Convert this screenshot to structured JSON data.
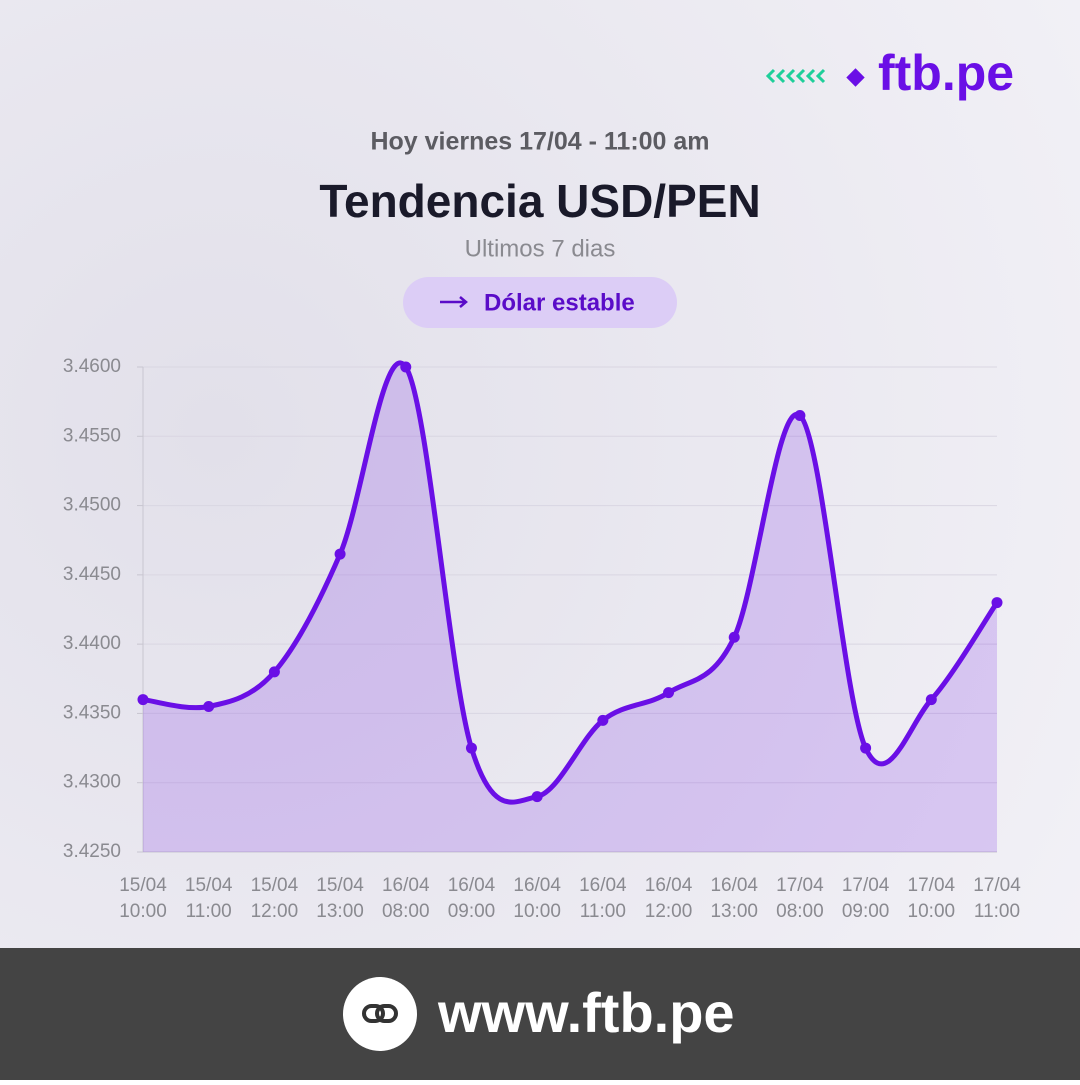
{
  "brand": "ftb.pe",
  "date_line": "Hoy viernes 17/04 - 11:00 am",
  "badge": "Dólar estable",
  "footer_url": "www.ftb.pe",
  "chart_data": {
    "type": "line",
    "title": "Tendencia USD/PEN",
    "subtitle": "Ultimos 7 dias",
    "categories": [
      "15/04 10:00",
      "15/04 11:00",
      "15/04 12:00",
      "15/04 13:00",
      "16/04 08:00",
      "16/04 09:00",
      "16/04 10:00",
      "16/04 11:00",
      "16/04 12:00",
      "16/04 13:00",
      "17/04 08:00",
      "17/04 09:00",
      "17/04 10:00",
      "17/04 11:00"
    ],
    "values": [
      3.436,
      3.4355,
      3.438,
      3.4465,
      3.46,
      3.4325,
      3.429,
      3.4345,
      3.4365,
      3.4405,
      3.4565,
      3.4325,
      3.436,
      3.443
    ],
    "color": "#6a0fe6",
    "ylim": [
      3.425,
      3.46
    ],
    "yticks": [
      {
        "value": 3.425,
        "label": "3.4250"
      },
      {
        "value": 3.43,
        "label": "3.4300"
      },
      {
        "value": 3.435,
        "label": "3.4350"
      },
      {
        "value": 3.44,
        "label": "3.4400"
      },
      {
        "value": 3.445,
        "label": "3.4450"
      },
      {
        "value": 3.45,
        "label": "3.4500"
      },
      {
        "value": 3.455,
        "label": "3.4550"
      },
      {
        "value": 3.46,
        "label": "3.4600"
      }
    ],
    "grid": true
  }
}
